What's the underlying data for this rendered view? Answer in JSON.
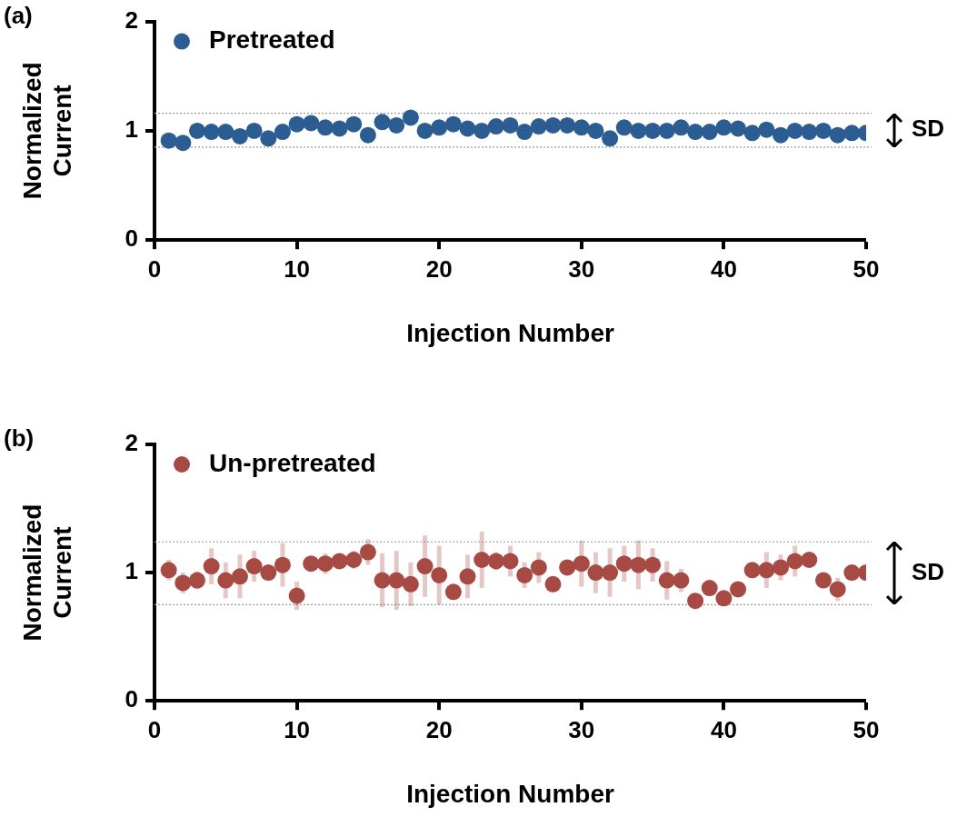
{
  "chart_data": [
    {
      "type": "scatter",
      "xlabel": "Injection Number",
      "ylabel": "Normalized Current",
      "annotations": [
        "(a)",
        "SD"
      ],
      "x": [
        1,
        2,
        3,
        4,
        5,
        6,
        7,
        8,
        9,
        10,
        11,
        12,
        13,
        14,
        15,
        16,
        17,
        18,
        19,
        20,
        21,
        22,
        23,
        24,
        25,
        26,
        27,
        28,
        29,
        30,
        31,
        32,
        33,
        34,
        35,
        36,
        37,
        38,
        39,
        40,
        41,
        42,
        43,
        44,
        45,
        46,
        47,
        48,
        49,
        50
      ],
      "series": [
        {
          "name": "Pretreated",
          "color": "#2b5d92",
          "values": [
            0.91,
            0.89,
            1.0,
            0.99,
            0.99,
            0.95,
            1.0,
            0.93,
            0.99,
            1.06,
            1.07,
            1.03,
            1.02,
            1.06,
            0.96,
            1.08,
            1.05,
            1.12,
            1.0,
            1.03,
            1.06,
            1.02,
            1.0,
            1.04,
            1.05,
            0.99,
            1.04,
            1.05,
            1.05,
            1.03,
            1.0,
            0.93,
            1.03,
            1.0,
            1.0,
            1.0,
            1.03,
            0.99,
            0.99,
            1.03,
            1.02,
            0.98,
            1.01,
            0.96,
            1.0,
            0.99,
            1.0,
            0.96,
            0.98,
            0.98
          ],
          "errors": [
            null,
            null,
            null,
            null,
            null,
            null,
            null,
            null,
            null,
            null,
            null,
            null,
            null,
            null,
            null,
            null,
            null,
            0.06,
            null,
            null,
            null,
            null,
            null,
            null,
            null,
            null,
            null,
            null,
            0.02,
            null,
            null,
            null,
            0.02,
            null,
            null,
            0.02,
            null,
            0.02,
            0.03,
            null,
            0.03,
            0.02,
            0.02,
            0.02,
            0.02,
            0.03,
            0.02,
            null,
            null,
            null
          ]
        }
      ],
      "xlim": [
        0,
        50
      ],
      "xticks": [
        0,
        10,
        20,
        30,
        40,
        50
      ],
      "ylim": [
        0,
        2
      ],
      "yticks": [
        0,
        1,
        2
      ],
      "ref_lines": [
        {
          "axis": "y",
          "value": 1.16,
          "line_style": "dotted",
          "color": "#999999"
        },
        {
          "axis": "y",
          "value": 0.85,
          "line_style": "dotted",
          "color": "#999999"
        }
      ],
      "legend": "top left",
      "marker": "circle"
    },
    {
      "type": "scatter",
      "xlabel": "Injection Number",
      "ylabel": "Normalized Current",
      "annotations": [
        "(b)",
        "SD"
      ],
      "x": [
        1,
        2,
        3,
        4,
        5,
        6,
        7,
        8,
        9,
        10,
        11,
        12,
        13,
        14,
        15,
        16,
        17,
        18,
        19,
        20,
        21,
        22,
        23,
        24,
        25,
        26,
        27,
        28,
        29,
        30,
        31,
        32,
        33,
        34,
        35,
        36,
        37,
        38,
        39,
        40,
        41,
        42,
        43,
        44,
        45,
        46,
        47,
        48,
        49,
        50
      ],
      "series": [
        {
          "name": "Un-pretreated",
          "color": "#a64a43",
          "values": [
            1.02,
            0.92,
            0.94,
            1.05,
            0.94,
            0.97,
            1.05,
            1.0,
            1.06,
            0.82,
            1.07,
            1.07,
            1.09,
            1.1,
            1.16,
            0.94,
            0.94,
            0.91,
            1.05,
            0.98,
            0.85,
            0.97,
            1.1,
            1.09,
            1.09,
            0.98,
            1.04,
            0.91,
            1.04,
            1.07,
            1.0,
            1.0,
            1.07,
            1.06,
            1.06,
            0.94,
            0.94,
            0.78,
            0.88,
            0.8,
            0.87,
            1.02,
            1.02,
            1.04,
            1.09,
            1.1,
            0.94,
            0.87,
            1.0,
            1.0
          ],
          "errors": [
            0.08,
            0.08,
            0.07,
            0.14,
            0.14,
            0.17,
            0.12,
            null,
            0.17,
            0.11,
            null,
            0.08,
            0.05,
            0.07,
            0.1,
            0.21,
            0.23,
            0.17,
            0.24,
            0.23,
            null,
            0.17,
            0.22,
            0.07,
            0.12,
            0.1,
            0.12,
            null,
            0.03,
            0.18,
            0.16,
            0.19,
            0.14,
            0.19,
            0.13,
            0.15,
            0.09,
            null,
            null,
            null,
            null,
            0.06,
            0.14,
            0.1,
            0.12,
            null,
            0.05,
            0.09,
            0.06,
            null
          ]
        }
      ],
      "xlim": [
        0,
        50
      ],
      "xticks": [
        0,
        10,
        20,
        30,
        40,
        50
      ],
      "ylim": [
        0,
        2
      ],
      "yticks": [
        0,
        1,
        2
      ],
      "ref_lines": [
        {
          "axis": "y",
          "value": 1.24,
          "line_style": "dotted",
          "color": "#999999"
        },
        {
          "axis": "y",
          "value": 0.75,
          "line_style": "dotted",
          "color": "#999999"
        }
      ],
      "legend": "top left",
      "marker": "circle"
    }
  ]
}
